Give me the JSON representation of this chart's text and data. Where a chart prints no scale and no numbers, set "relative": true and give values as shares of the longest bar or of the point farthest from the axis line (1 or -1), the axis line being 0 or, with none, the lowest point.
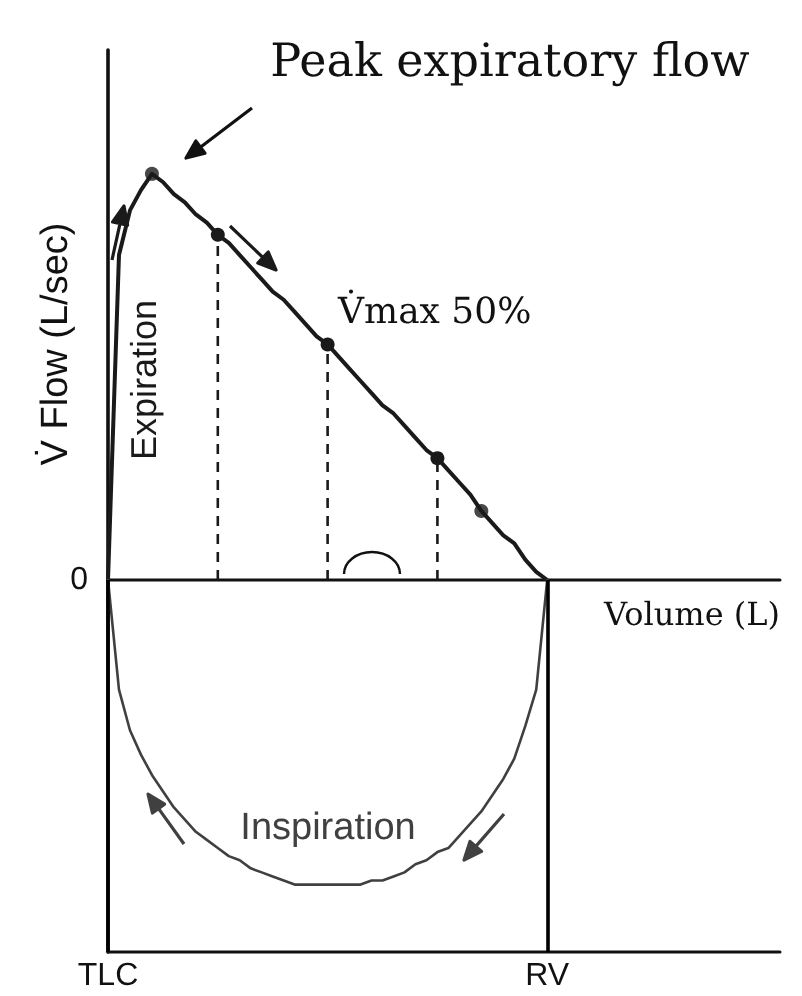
{
  "chart_data": {
    "type": "line",
    "relative": true,
    "marker": "none",
    "xlabel": "Volume (L)",
    "ylabel": "V̇ Flow (L/sec)",
    "categories": [
      "TLC",
      null,
      null,
      null,
      null,
      null,
      null,
      null,
      null,
      null,
      null,
      null,
      null,
      null,
      null,
      null,
      null,
      null,
      null,
      null,
      null,
      null,
      null,
      null,
      null,
      null,
      null,
      null,
      null,
      null,
      null,
      null,
      null,
      null,
      null,
      null,
      null,
      null,
      null,
      null,
      "RV"
    ],
    "series": [
      {
        "name": "Expiration",
        "color": "#1a1a1a",
        "values": [
          0,
          0.8,
          0.91,
          0.96,
          1.0,
          0.98,
          0.95,
          0.93,
          0.9,
          0.88,
          0.85,
          0.83,
          0.8,
          0.77,
          0.74,
          0.71,
          0.69,
          0.66,
          0.63,
          0.6,
          0.58,
          0.55,
          0.52,
          0.49,
          0.46,
          0.43,
          0.41,
          0.38,
          0.35,
          0.32,
          0.3,
          0.27,
          0.24,
          0.21,
          0.17,
          0.14,
          0.11,
          0.09,
          0.05,
          0.02,
          0
        ]
      },
      {
        "name": "Inspiration",
        "color": "#404040",
        "values": [
          0,
          -0.27,
          -0.37,
          -0.43,
          -0.48,
          -0.52,
          -0.56,
          -0.59,
          -0.62,
          -0.64,
          -0.66,
          -0.68,
          -0.69,
          -0.71,
          -0.72,
          -0.73,
          -0.74,
          -0.75,
          -0.75,
          -0.75,
          -0.75,
          -0.75,
          -0.75,
          -0.75,
          -0.74,
          -0.74,
          -0.73,
          -0.72,
          -0.7,
          -0.69,
          -0.67,
          -0.66,
          -0.63,
          -0.6,
          -0.57,
          -0.53,
          -0.49,
          -0.44,
          -0.36,
          -0.27,
          0
        ]
      },
      {
        "type": "lollipop",
        "color": "#1a1a1a",
        "marker": "circle",
        "line_style": "dashed",
        "values": [
          null,
          null,
          null,
          null,
          null,
          null,
          null,
          null,
          null,
          null,
          0.85,
          null,
          null,
          null,
          null,
          null,
          null,
          null,
          null,
          null,
          0.58,
          null,
          null,
          null,
          null,
          null,
          null,
          null,
          null,
          null,
          0.3,
          null,
          null,
          null,
          null,
          null,
          null,
          null,
          null,
          null,
          null
        ]
      },
      {
        "type": "scatter",
        "color": "#1a1a1a",
        "marker": "circle",
        "values": [
          null,
          null,
          null,
          null,
          1.0,
          null,
          null,
          null,
          null,
          null,
          null,
          null,
          null,
          null,
          null,
          null,
          null,
          null,
          null,
          null,
          null,
          null,
          null,
          null,
          null,
          null,
          null,
          null,
          null,
          null,
          null,
          null,
          null,
          null,
          0.17,
          null,
          null,
          null,
          null,
          null,
          null
        ]
      }
    ],
    "ref_lines": [
      {
        "axis": "x",
        "value": "TLC",
        "color": "#000000"
      },
      {
        "axis": "x",
        "value": "RV",
        "color": "#000000"
      }
    ],
    "annotations": [
      "Peak expiratory flow",
      "V̇max 50%",
      "0"
    ]
  }
}
